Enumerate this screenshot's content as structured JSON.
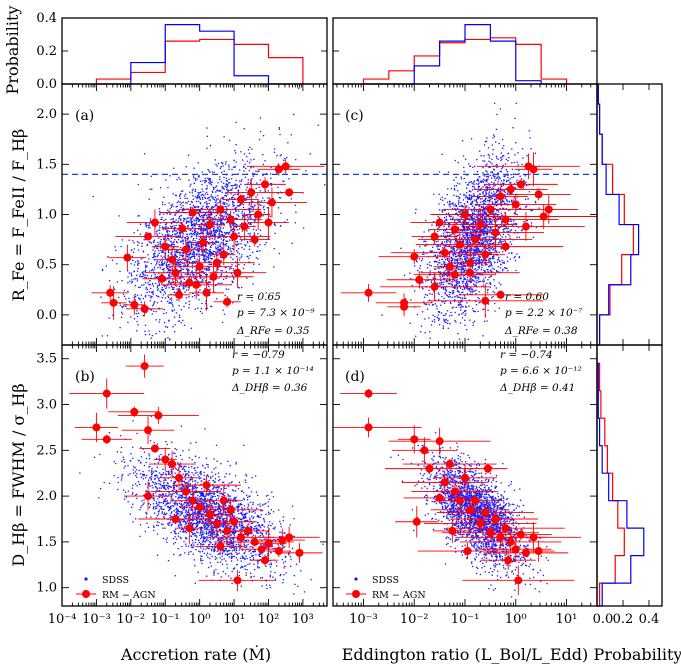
{
  "figure": {
    "panels": {
      "a": {
        "label": "(a)",
        "r": "r = 0.65",
        "p": "p = 7.3 × 10⁻⁹",
        "delta": "Δ_RFe = 0.35"
      },
      "b": {
        "label": "(b)",
        "r": "r = −0.79",
        "p": "p = 1.1 × 10⁻¹⁴",
        "delta": "Δ_DHβ = 0.36"
      },
      "c": {
        "label": "(c)",
        "r": "r = 0.60",
        "p": "p = 2.2 × 10⁻⁷",
        "delta": "Δ_RFe = 0.38"
      },
      "d": {
        "label": "(d)",
        "r": "r = −0.74",
        "p": "p = 6.6 × 10⁻¹²",
        "delta": "Δ_DHβ = 0.41"
      }
    },
    "legend": {
      "sdss": "SDSS",
      "rm": "RM − AGN"
    },
    "axis_labels": {
      "x_left": "Accretion rate (Ṁ)",
      "x_right": "Eddington ratio (L_Bol/L_Edd)",
      "y_top": "R_Fe = F_FeII / F_Hβ",
      "y_bottom": "D_Hβ = FWHM / σ_Hβ",
      "prob_top": "Probability",
      "prob_right": "Probability"
    }
  },
  "chart_data": [
    {
      "type": "scatter",
      "panel": "a",
      "xlabel": "Accretion rate (Ṁ)",
      "ylabel": "R_Fe = F_FeII / F_Hβ",
      "x_scale": "log",
      "xlim": [
        -4,
        3.7
      ],
      "ylim": [
        -0.3,
        2.3
      ],
      "x_tick_labels": [
        "10⁻⁴",
        "10⁻³",
        "10⁻²",
        "10⁻¹",
        "10⁰",
        "10¹",
        "10²",
        "10³"
      ],
      "y_tick_labels": [
        "0.0",
        "0.5",
        "1.0",
        "1.5",
        "2.0"
      ],
      "reference_line": {
        "y": 1.4,
        "style": "dashed",
        "color": "#1f3de0"
      },
      "series": [
        {
          "name": "SDSS",
          "color": "#1a1aff",
          "cloud": {
            "x_center": 0.0,
            "x_spread": 1.0,
            "y_center": 0.75,
            "y_spread": 0.38,
            "correlation": 0.55
          }
        },
        {
          "name": "RM − AGN",
          "color": "#ff0000",
          "points": [
            {
              "x": -2.6,
              "y": 0.22
            },
            {
              "x": -2.5,
              "y": 0.12
            },
            {
              "x": -1.9,
              "y": 0.1
            },
            {
              "x": -1.6,
              "y": 0.06
            },
            {
              "x": -2.1,
              "y": 0.57
            },
            {
              "x": -1.5,
              "y": 0.78
            },
            {
              "x": -1.3,
              "y": 0.92
            },
            {
              "x": -1.0,
              "y": 0.68
            },
            {
              "x": -0.8,
              "y": 0.55
            },
            {
              "x": -0.7,
              "y": 0.42
            },
            {
              "x": -0.5,
              "y": 0.86
            },
            {
              "x": -0.4,
              "y": 0.65
            },
            {
              "x": -0.3,
              "y": 0.32
            },
            {
              "x": -0.2,
              "y": 1.02
            },
            {
              "x": 0.0,
              "y": 0.48
            },
            {
              "x": 0.1,
              "y": 0.72
            },
            {
              "x": 0.3,
              "y": 0.9
            },
            {
              "x": 0.4,
              "y": 0.38
            },
            {
              "x": 0.6,
              "y": 1.05
            },
            {
              "x": 0.7,
              "y": 0.6
            },
            {
              "x": 0.9,
              "y": 0.95
            },
            {
              "x": 1.0,
              "y": 0.78
            },
            {
              "x": 1.2,
              "y": 1.15
            },
            {
              "x": 1.3,
              "y": 0.88
            },
            {
              "x": 1.5,
              "y": 1.22
            },
            {
              "x": 1.7,
              "y": 1.0
            },
            {
              "x": 1.9,
              "y": 1.3
            },
            {
              "x": 2.1,
              "y": 1.12
            },
            {
              "x": 2.3,
              "y": 1.45
            },
            {
              "x": 2.5,
              "y": 1.48
            },
            {
              "x": 2.6,
              "y": 1.22
            },
            {
              "x": 0.8,
              "y": 0.13
            },
            {
              "x": -0.6,
              "y": 0.2
            },
            {
              "x": 0.2,
              "y": 0.22
            },
            {
              "x": -1.1,
              "y": 0.36
            },
            {
              "x": 1.6,
              "y": 0.75
            },
            {
              "x": 2.0,
              "y": 0.92
            },
            {
              "x": -0.1,
              "y": 0.3
            },
            {
              "x": 0.5,
              "y": 0.52
            },
            {
              "x": 1.1,
              "y": 0.42
            }
          ]
        }
      ]
    },
    {
      "type": "scatter",
      "panel": "b",
      "xlabel": "Accretion rate (Ṁ)",
      "ylabel": "D_Hβ = FWHM / σ_Hβ",
      "x_scale": "log",
      "xlim": [
        -4,
        3.7
      ],
      "ylim": [
        0.8,
        3.65
      ],
      "x_tick_labels": [
        "10⁻⁴",
        "10⁻³",
        "10⁻²",
        "10⁻¹",
        "10⁰",
        "10¹",
        "10²",
        "10³"
      ],
      "y_tick_labels": [
        "1.0",
        "1.5",
        "2.0",
        "2.5",
        "3.0",
        "3.5"
      ],
      "series": [
        {
          "name": "SDSS",
          "color": "#1a1aff",
          "cloud": {
            "x_center": 0.2,
            "x_spread": 1.0,
            "y_center": 1.8,
            "y_spread": 0.3,
            "correlation": -0.6
          }
        },
        {
          "name": "RM − AGN",
          "color": "#ff0000",
          "points": [
            {
              "x": -1.6,
              "y": 3.42
            },
            {
              "x": -2.7,
              "y": 3.12
            },
            {
              "x": -3.0,
              "y": 2.75
            },
            {
              "x": -2.7,
              "y": 2.62
            },
            {
              "x": -1.9,
              "y": 2.92
            },
            {
              "x": -1.5,
              "y": 2.72
            },
            {
              "x": -1.2,
              "y": 2.88
            },
            {
              "x": -1.0,
              "y": 2.4
            },
            {
              "x": -1.3,
              "y": 2.52
            },
            {
              "x": -0.8,
              "y": 2.35
            },
            {
              "x": -0.6,
              "y": 2.2
            },
            {
              "x": -0.4,
              "y": 2.05
            },
            {
              "x": -0.2,
              "y": 1.95
            },
            {
              "x": 0.0,
              "y": 1.88
            },
            {
              "x": 0.2,
              "y": 2.12
            },
            {
              "x": 0.3,
              "y": 1.8
            },
            {
              "x": 0.5,
              "y": 1.7
            },
            {
              "x": 0.7,
              "y": 1.95
            },
            {
              "x": 0.8,
              "y": 1.62
            },
            {
              "x": 1.0,
              "y": 1.72
            },
            {
              "x": 1.2,
              "y": 1.55
            },
            {
              "x": 1.4,
              "y": 1.62
            },
            {
              "x": 1.6,
              "y": 1.5
            },
            {
              "x": 1.8,
              "y": 1.42
            },
            {
              "x": 2.0,
              "y": 1.48
            },
            {
              "x": 2.3,
              "y": 1.4
            },
            {
              "x": 2.6,
              "y": 1.55
            },
            {
              "x": 2.9,
              "y": 1.38
            },
            {
              "x": -1.5,
              "y": 2.0
            },
            {
              "x": -0.7,
              "y": 1.75
            },
            {
              "x": 1.1,
              "y": 1.08
            },
            {
              "x": 1.9,
              "y": 1.3
            },
            {
              "x": 0.6,
              "y": 1.45
            },
            {
              "x": -0.3,
              "y": 1.65
            },
            {
              "x": 2.4,
              "y": 1.52
            },
            {
              "x": 0.9,
              "y": 1.85
            }
          ]
        }
      ]
    },
    {
      "type": "scatter",
      "panel": "c",
      "xlabel": "Eddington ratio (L_Bol/L_Edd)",
      "ylabel": "",
      "x_scale": "log",
      "xlim": [
        -3.6,
        1.6
      ],
      "ylim": [
        -0.3,
        2.3
      ],
      "x_tick_labels": [
        "10⁻³",
        "10⁻²",
        "10⁻¹",
        "10⁰",
        "10¹"
      ],
      "reference_line": {
        "y": 1.4,
        "style": "dashed",
        "color": "#1f3de0"
      },
      "series": [
        {
          "name": "SDSS",
          "color": "#1a1aff",
          "cloud": {
            "x_center": -0.85,
            "x_spread": 0.45,
            "y_center": 0.75,
            "y_spread": 0.38,
            "correlation": 0.5
          }
        },
        {
          "name": "RM − AGN",
          "color": "#ff0000",
          "points": [
            {
              "x": -2.9,
              "y": 0.22
            },
            {
              "x": -2.2,
              "y": 0.12
            },
            {
              "x": -2.2,
              "y": 0.08
            },
            {
              "x": -2.0,
              "y": 0.58
            },
            {
              "x": -1.9,
              "y": 0.35
            },
            {
              "x": -1.6,
              "y": 0.78
            },
            {
              "x": -1.5,
              "y": 0.92
            },
            {
              "x": -1.4,
              "y": 0.62
            },
            {
              "x": -1.3,
              "y": 0.48
            },
            {
              "x": -1.2,
              "y": 0.85
            },
            {
              "x": -1.1,
              "y": 0.7
            },
            {
              "x": -1.0,
              "y": 1.0
            },
            {
              "x": -0.9,
              "y": 0.42
            },
            {
              "x": -0.8,
              "y": 0.75
            },
            {
              "x": -0.7,
              "y": 0.9
            },
            {
              "x": -0.6,
              "y": 0.6
            },
            {
              "x": -0.5,
              "y": 1.05
            },
            {
              "x": -0.4,
              "y": 0.82
            },
            {
              "x": -0.3,
              "y": 1.18
            },
            {
              "x": -0.2,
              "y": 0.95
            },
            {
              "x": -0.1,
              "y": 1.25
            },
            {
              "x": 0.0,
              "y": 1.1
            },
            {
              "x": 0.1,
              "y": 1.3
            },
            {
              "x": 0.25,
              "y": 1.48
            },
            {
              "x": 0.35,
              "y": 1.45
            },
            {
              "x": 0.45,
              "y": 1.2
            },
            {
              "x": 0.55,
              "y": 0.98
            },
            {
              "x": 0.65,
              "y": 1.05
            },
            {
              "x": -0.6,
              "y": 0.14
            },
            {
              "x": -0.3,
              "y": 0.2
            },
            {
              "x": -1.6,
              "y": 0.28
            },
            {
              "x": -0.9,
              "y": 0.52
            },
            {
              "x": -0.2,
              "y": 0.68
            },
            {
              "x": 0.2,
              "y": 0.88
            },
            {
              "x": -1.2,
              "y": 0.4
            }
          ]
        }
      ]
    },
    {
      "type": "scatter",
      "panel": "d",
      "xlabel": "Eddington ratio (L_Bol/L_Edd)",
      "ylabel": "",
      "x_scale": "log",
      "xlim": [
        -3.6,
        1.6
      ],
      "ylim": [
        0.8,
        3.65
      ],
      "x_tick_labels": [
        "10⁻³",
        "10⁻²",
        "10⁻¹",
        "10⁰",
        "10¹"
      ],
      "series": [
        {
          "name": "SDSS",
          "color": "#1a1aff",
          "cloud": {
            "x_center": -0.75,
            "x_spread": 0.45,
            "y_center": 1.8,
            "y_spread": 0.28,
            "correlation": -0.6
          }
        },
        {
          "name": "RM − AGN",
          "color": "#ff0000",
          "points": [
            {
              "x": -2.9,
              "y": 3.12
            },
            {
              "x": -2.9,
              "y": 2.75
            },
            {
              "x": -2.0,
              "y": 2.62
            },
            {
              "x": -1.8,
              "y": 2.5
            },
            {
              "x": -1.7,
              "y": 2.3
            },
            {
              "x": -1.5,
              "y": 2.6
            },
            {
              "x": -1.4,
              "y": 2.15
            },
            {
              "x": -1.3,
              "y": 2.35
            },
            {
              "x": -1.2,
              "y": 2.05
            },
            {
              "x": -1.1,
              "y": 1.95
            },
            {
              "x": -1.0,
              "y": 2.2
            },
            {
              "x": -0.9,
              "y": 1.85
            },
            {
              "x": -0.8,
              "y": 1.95
            },
            {
              "x": -0.7,
              "y": 1.7
            },
            {
              "x": -0.6,
              "y": 1.82
            },
            {
              "x": -0.5,
              "y": 1.6
            },
            {
              "x": -0.4,
              "y": 1.75
            },
            {
              "x": -0.3,
              "y": 1.55
            },
            {
              "x": -0.2,
              "y": 1.65
            },
            {
              "x": -0.1,
              "y": 1.5
            },
            {
              "x": 0.0,
              "y": 1.42
            },
            {
              "x": 0.1,
              "y": 1.58
            },
            {
              "x": 0.2,
              "y": 1.38
            },
            {
              "x": 0.35,
              "y": 1.55
            },
            {
              "x": 0.45,
              "y": 1.4
            },
            {
              "x": -1.95,
              "y": 1.72
            },
            {
              "x": -1.5,
              "y": 1.98
            },
            {
              "x": -0.55,
              "y": 2.3
            },
            {
              "x": 0.05,
              "y": 1.08
            },
            {
              "x": -0.95,
              "y": 1.4
            },
            {
              "x": -0.15,
              "y": 1.3
            },
            {
              "x": -1.25,
              "y": 1.62
            }
          ]
        }
      ]
    },
    {
      "type": "histogram",
      "panel": "top-left",
      "ylabel": "Probability",
      "ylim": [
        0,
        0.4
      ],
      "y_tick_labels": [
        "0.0",
        "0.2",
        "0.4"
      ],
      "bin_edges": [
        -3,
        -2,
        -1,
        0,
        1,
        2,
        3
      ],
      "series": [
        {
          "name": "RM − AGN",
          "color": "#ff0000",
          "values": [
            0.03,
            0.07,
            0.26,
            0.27,
            0.24,
            0.16
          ]
        },
        {
          "name": "SDSS",
          "color": "#0000ff",
          "values": [
            0.0,
            0.13,
            0.36,
            0.32,
            0.05,
            0.0
          ]
        }
      ]
    },
    {
      "type": "histogram",
      "panel": "top-right",
      "ylim": [
        0,
        0.4
      ],
      "bin_edges": [
        -3.0,
        -2.5,
        -2.0,
        -1.5,
        -1.0,
        -0.5,
        0.0,
        0.5,
        1.0
      ],
      "series": [
        {
          "name": "RM − AGN",
          "color": "#ff0000",
          "values": [
            0.03,
            0.08,
            0.17,
            0.25,
            0.27,
            0.28,
            0.24,
            0.03
          ]
        },
        {
          "name": "SDSS",
          "color": "#0000ff",
          "values": [
            0.0,
            0.0,
            0.11,
            0.26,
            0.36,
            0.26,
            0.02,
            0.0
          ]
        }
      ]
    },
    {
      "type": "histogram",
      "panel": "right-top",
      "orientation": "horizontal",
      "xlabel": "Probability",
      "xlim": [
        0,
        0.5
      ],
      "bin_edges": [
        -0.3,
        0.0,
        0.3,
        0.6,
        0.9,
        1.2,
        1.5,
        1.8,
        2.1,
        2.3
      ],
      "series": [
        {
          "name": "RM − AGN",
          "color": "#ff0000",
          "values": [
            0.02,
            0.1,
            0.19,
            0.28,
            0.21,
            0.12,
            0.04,
            0.02,
            0.01
          ]
        },
        {
          "name": "SDSS",
          "color": "#0000ff",
          "values": [
            0.02,
            0.09,
            0.26,
            0.32,
            0.17,
            0.07,
            0.04,
            0.02,
            0.01
          ]
        }
      ]
    },
    {
      "type": "histogram",
      "panel": "right-bottom",
      "orientation": "horizontal",
      "xlabel": "Probability",
      "xlim": [
        0,
        0.5
      ],
      "x_tick_labels": [
        "0.0",
        "0.2",
        "0.4"
      ],
      "bin_edges": [
        0.8,
        1.05,
        1.35,
        1.65,
        1.95,
        2.25,
        2.55,
        2.85,
        3.15,
        3.45
      ],
      "series": [
        {
          "name": "RM − AGN",
          "color": "#ff0000",
          "values": [
            0.02,
            0.14,
            0.21,
            0.16,
            0.12,
            0.08,
            0.06,
            0.03,
            0.02
          ]
        },
        {
          "name": "SDSS",
          "color": "#0000ff",
          "values": [
            0.04,
            0.26,
            0.36,
            0.23,
            0.09,
            0.04,
            0.02,
            0.01,
            0.01
          ]
        }
      ]
    }
  ]
}
